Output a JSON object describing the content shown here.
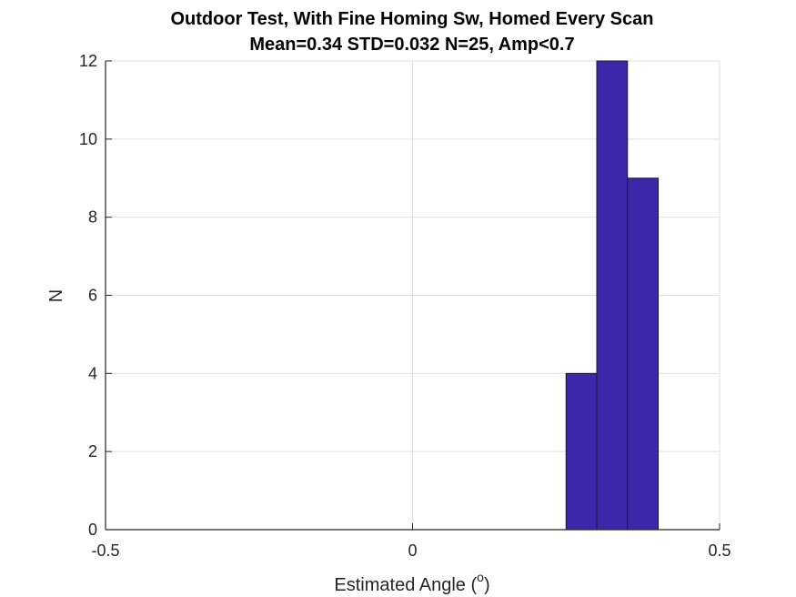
{
  "chart_data": {
    "type": "bar",
    "title": "Outdoor Test, With Fine Homing Sw, Homed Every Scan",
    "subtitle": "Mean=0.34 STD=0.032 N=25, Amp<0.7",
    "xlabel": "Estimated Angle (",
    "xlabel_sup": "o",
    "xlabel_end": ")",
    "ylabel": "N",
    "xlim": [
      -0.5,
      0.5
    ],
    "ylim": [
      0,
      12
    ],
    "xticks": [
      -0.5,
      0,
      0.5
    ],
    "xtick_labels": [
      "-0.5",
      "0",
      "0.5"
    ],
    "yticks": [
      0,
      2,
      4,
      6,
      8,
      10,
      12
    ],
    "ytick_labels": [
      "0",
      "2",
      "4",
      "6",
      "8",
      "10",
      "12"
    ],
    "grid": true,
    "bins": [
      {
        "x0": 0.25,
        "x1": 0.3,
        "count": 4
      },
      {
        "x0": 0.3,
        "x1": 0.35,
        "count": 12
      },
      {
        "x0": 0.35,
        "x1": 0.4,
        "count": 9
      }
    ],
    "bar_color": "#3c27aa",
    "bar_edge_color": "#1a1a1a",
    "grid_color": "#dfdfdf",
    "axis_color": "#262626"
  }
}
